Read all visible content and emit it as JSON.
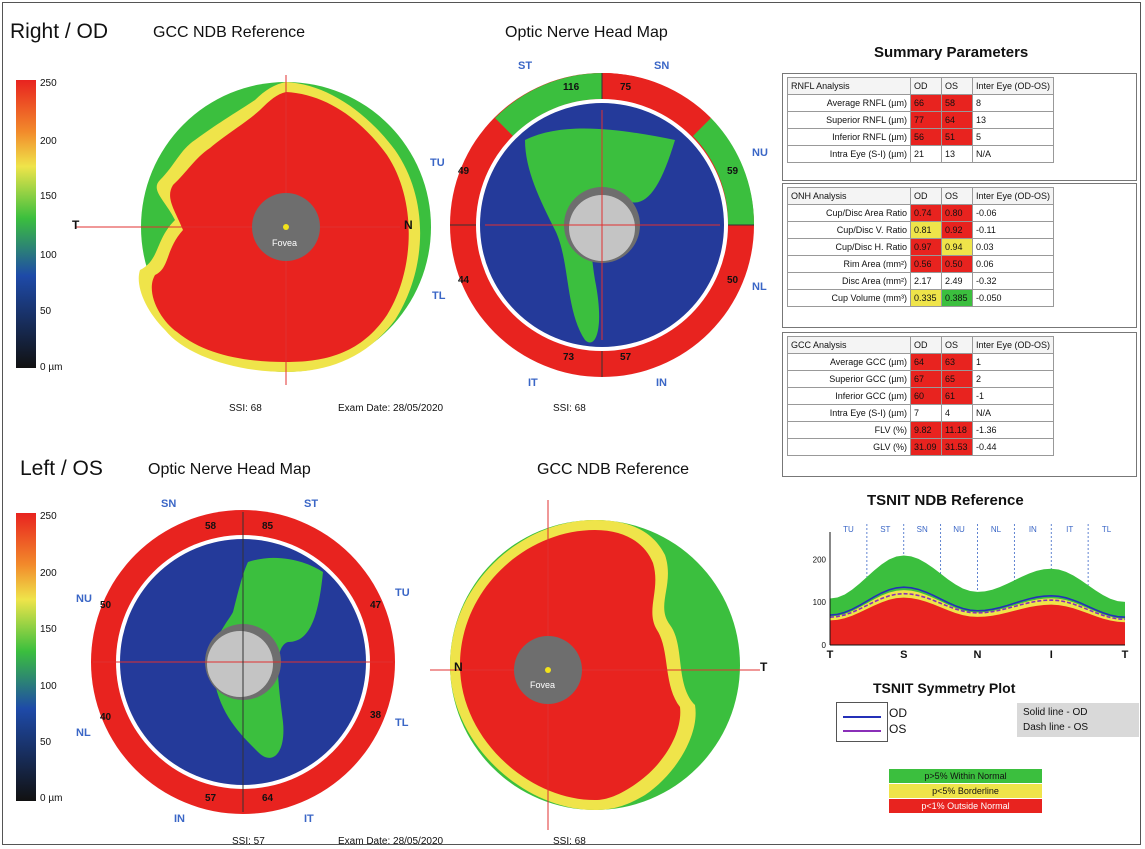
{
  "header": {
    "right_eye": "Right / OD",
    "left_eye": "Left / OS"
  },
  "top": {
    "left_title": "GCC NDB Reference",
    "center_title": "Optic Nerve Head Map",
    "ssi_left": "SSI: 68",
    "exam_date": "Exam Date: 28/05/2020",
    "ssi_center": "SSI: 68",
    "nasal_label": "N",
    "temporal_label": "T",
    "fovea_label": "Fovea"
  },
  "bottom": {
    "left_title": "Optic Nerve Head Map",
    "center_title": "GCC NDB Reference",
    "ssi_left": "SSI: 57",
    "exam_date": "Exam Date: 28/05/2020",
    "ssi_center": "SSI: 68",
    "nasal_label": "N",
    "temporal_label": "T",
    "fovea_label": "Fovea"
  },
  "colorbar": {
    "ticks": [
      "250",
      "200",
      "150",
      "100",
      "50",
      "0 µm"
    ]
  },
  "onh_top": {
    "quadrants": [
      "ST",
      "SN",
      "NU",
      "NL",
      "IN",
      "IT",
      "TL",
      "TU"
    ],
    "values": [
      "116",
      "75",
      "59",
      "50",
      "57",
      "73",
      "44",
      "49"
    ]
  },
  "onh_bottom": {
    "quadrants": [
      "SN",
      "ST",
      "TU",
      "TL",
      "IT",
      "IN",
      "NL",
      "NU"
    ],
    "values": [
      "58",
      "85",
      "47",
      "38",
      "64",
      "57",
      "40",
      "50"
    ]
  },
  "summary": {
    "title": "Summary Parameters",
    "rnfl": {
      "header": [
        "RNFL Analysis",
        "OD",
        "OS",
        "Inter Eye (OD-OS)"
      ],
      "rows": [
        [
          "Average RNFL (µm)",
          "66",
          "58",
          "8"
        ],
        [
          "Superior RNFL (µm)",
          "77",
          "64",
          "13"
        ],
        [
          "Inferior RNFL (µm)",
          "56",
          "51",
          "5"
        ],
        [
          "Intra Eye (S-I) (µm)",
          "21",
          "13",
          "N/A"
        ]
      ]
    },
    "onh": {
      "header": [
        "ONH Analysis",
        "OD",
        "OS",
        "Inter Eye (OD-OS)"
      ],
      "rows": [
        [
          "Cup/Disc Area Ratio",
          "0.74",
          "0.80",
          "-0.06"
        ],
        [
          "Cup/Disc V. Ratio",
          "0.81",
          "0.92",
          "-0.11"
        ],
        [
          "Cup/Disc H. Ratio",
          "0.97",
          "0.94",
          "0.03"
        ],
        [
          "Rim Area (mm²)",
          "0.56",
          "0.50",
          "0.06"
        ],
        [
          "Disc Area (mm²)",
          "2.17",
          "2.49",
          "-0.32"
        ],
        [
          "Cup Volume (mm³)",
          "0.335",
          "0.385",
          "-0.050"
        ]
      ]
    },
    "gcc": {
      "header": [
        "GCC Analysis",
        "OD",
        "OS",
        "Inter Eye (OD-OS)"
      ],
      "rows": [
        [
          "Average GCC (µm)",
          "64",
          "63",
          "1"
        ],
        [
          "Superior GCC (µm)",
          "67",
          "65",
          "2"
        ],
        [
          "Inferior GCC (µm)",
          "60",
          "61",
          "-1"
        ],
        [
          "Intra Eye (S-I) (µm)",
          "7",
          "4",
          "N/A"
        ],
        [
          "FLV (%)",
          "9.82",
          "11.18",
          "-1.36"
        ],
        [
          "GLV (%)",
          "31.09",
          "31.53",
          "-0.44"
        ]
      ]
    }
  },
  "tsnit": {
    "title": "TSNIT NDB Reference",
    "sectors": [
      "TU",
      "ST",
      "SN",
      "NU",
      "NL",
      "IN",
      "IT",
      "TL"
    ],
    "y_ticks": [
      "200",
      "100",
      "0"
    ],
    "x_ticks": [
      "T",
      "S",
      "N",
      "I",
      "T"
    ],
    "symmetry_title": "TSNIT Symmetry Plot",
    "legend_od": "OD",
    "legend_os": "OS",
    "solid_note": "Solid line - OD",
    "dash_note": "Dash line - OS",
    "chart_data": {
      "type": "area",
      "x": [
        "T",
        "S",
        "N",
        "I",
        "T"
      ],
      "ylim": [
        0,
        250
      ],
      "od_line": [
        70,
        135,
        80,
        115,
        65
      ],
      "os_line": [
        65,
        120,
        75,
        105,
        60
      ]
    }
  },
  "status_legend": {
    "within": "p>5% Within Normal",
    "borderline": "p<5% Borderline",
    "outside": "p<1% Outside Normal"
  },
  "colors": {
    "red": "#e8231f",
    "yellow": "#efe44a",
    "green": "#3bbf3e",
    "od_line": "#2430b8",
    "os_line": "#8a2fb8",
    "sector_label": "#3a66c6"
  }
}
